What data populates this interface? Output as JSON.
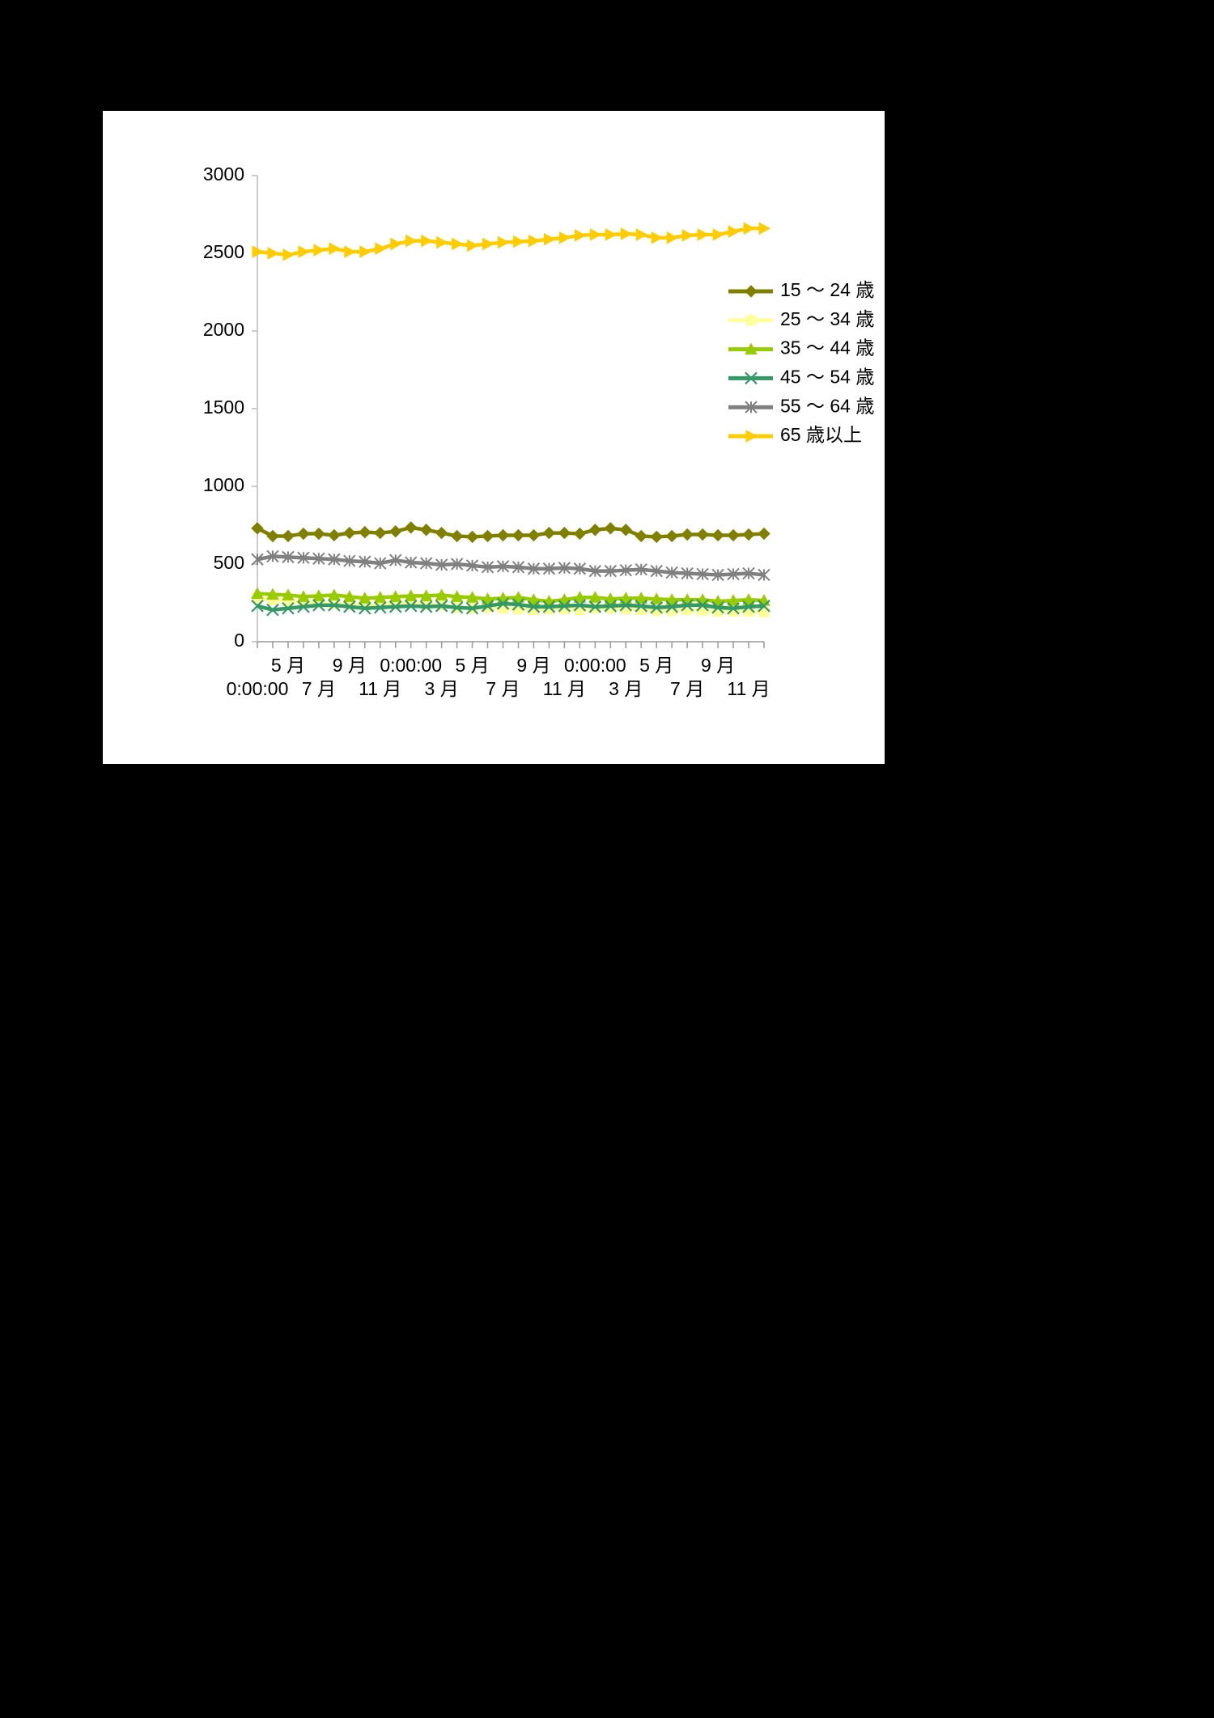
{
  "chart_data": {
    "type": "line",
    "categories": [
      "0:00:00",
      null,
      "5 月",
      null,
      "7 月",
      null,
      "9 月",
      null,
      "11 月",
      null,
      "0:00:00",
      null,
      "3 月",
      null,
      "5 月",
      null,
      "7 月",
      null,
      "9 月",
      null,
      "11 月",
      null,
      "0:00:00",
      null,
      "3 月",
      null,
      "5 月",
      null,
      "7 月",
      null,
      "9 月",
      null,
      "11 月",
      null
    ],
    "series": [
      {
        "name": "15 〜 24 歳",
        "color": "#808000",
        "marker": "diamond",
        "values": [
          730,
          680,
          680,
          695,
          695,
          685,
          700,
          705,
          700,
          710,
          735,
          720,
          700,
          680,
          675,
          680,
          685,
          685,
          685,
          700,
          700,
          695,
          720,
          730,
          720,
          680,
          675,
          680,
          690,
          690,
          685,
          685,
          690,
          695
        ]
      },
      {
        "name": "25 〜 34 歳",
        "color": "#ffff99",
        "marker": "square",
        "values": [
          280,
          270,
          260,
          255,
          250,
          245,
          240,
          235,
          240,
          245,
          250,
          240,
          235,
          220,
          215,
          220,
          215,
          210,
          205,
          210,
          210,
          205,
          215,
          215,
          210,
          205,
          200,
          200,
          205,
          200,
          195,
          195,
          195,
          190
        ]
      },
      {
        "name": "35 〜 44 歳",
        "color": "#99cc00",
        "marker": "triangle",
        "values": [
          310,
          305,
          300,
          290,
          295,
          300,
          290,
          280,
          285,
          290,
          295,
          295,
          300,
          290,
          285,
          275,
          280,
          285,
          270,
          260,
          270,
          285,
          285,
          275,
          280,
          280,
          275,
          270,
          270,
          270,
          260,
          265,
          270,
          265
        ]
      },
      {
        "name": "45 〜 54 歳",
        "color": "#339966",
        "marker": "x",
        "values": [
          230,
          205,
          215,
          225,
          235,
          235,
          225,
          215,
          220,
          225,
          230,
          225,
          230,
          220,
          215,
          230,
          245,
          240,
          225,
          225,
          230,
          235,
          225,
          230,
          235,
          230,
          220,
          225,
          235,
          235,
          220,
          215,
          225,
          230
        ]
      },
      {
        "name": "55 〜 64 歳",
        "color": "#808080",
        "marker": "star",
        "values": [
          530,
          550,
          545,
          540,
          535,
          530,
          520,
          515,
          505,
          525,
          510,
          505,
          495,
          500,
          490,
          480,
          485,
          480,
          470,
          470,
          475,
          470,
          455,
          455,
          460,
          465,
          455,
          445,
          440,
          435,
          430,
          435,
          440,
          430
        ]
      },
      {
        "name": "65 歳以上",
        "color": "#ffcc00",
        "marker": "arrow",
        "values": [
          2510,
          2500,
          2490,
          2510,
          2520,
          2530,
          2510,
          2510,
          2530,
          2560,
          2580,
          2580,
          2570,
          2560,
          2550,
          2560,
          2570,
          2575,
          2580,
          2590,
          2600,
          2615,
          2620,
          2620,
          2625,
          2620,
          2600,
          2600,
          2615,
          2620,
          2620,
          2640,
          2660,
          2660
        ]
      }
    ],
    "ylim": [
      0,
      3000
    ],
    "yticks": [
      0,
      500,
      1000,
      1500,
      2000,
      2500,
      3000
    ],
    "grid": false,
    "legend": "right"
  }
}
